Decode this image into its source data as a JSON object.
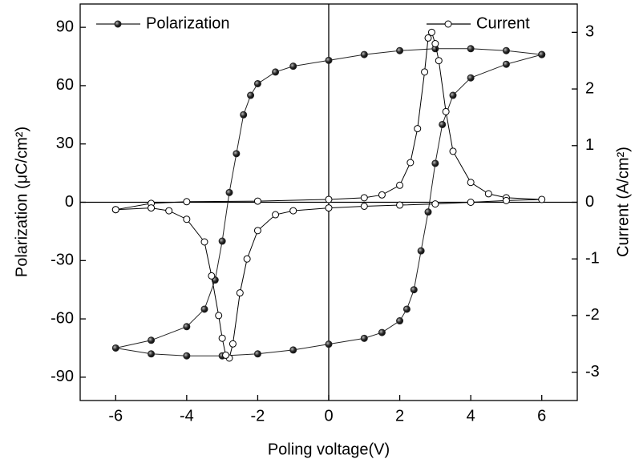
{
  "chart_data": {
    "type": "line",
    "x_label": "Poling voltage(V)",
    "y_label": "Polarization (μC/cm²)",
    "y2_label": "Current (A/cm²)",
    "xlim": [
      -7,
      7
    ],
    "xticks": [
      -6,
      -4,
      -2,
      0,
      2,
      4,
      6
    ],
    "ylim": [
      -102,
      102
    ],
    "yticks": [
      -90,
      -60,
      -30,
      0,
      30,
      60,
      90
    ],
    "y2lim": [
      -3.5,
      3.5
    ],
    "y2ticks": [
      -3,
      -2,
      -1,
      0,
      1,
      2,
      3
    ],
    "series": [
      {
        "name": "Polarization",
        "color": "#222222",
        "marker": "filled",
        "x": [
          6,
          5,
          4,
          3,
          2,
          1,
          0,
          -1,
          -1.5,
          -2,
          -2.2,
          -2.4,
          -2.6,
          -2.8,
          -3,
          -3.2,
          -3.5,
          -4,
          -5,
          -6,
          -5,
          -4,
          -3,
          -2,
          -1,
          0,
          1,
          1.5,
          2,
          2.2,
          2.4,
          2.6,
          2.8,
          3,
          3.2,
          3.5,
          4,
          5,
          6
        ],
        "values": [
          76,
          78,
          79,
          79,
          78,
          76,
          73,
          70,
          67,
          61,
          55,
          45,
          25,
          5,
          -20,
          -40,
          -55,
          -64,
          -71,
          -75,
          -78,
          -79,
          -79,
          -78,
          -76,
          -73,
          -70,
          -67,
          -61,
          -55,
          -45,
          -25,
          -5,
          20,
          40,
          55,
          64,
          71,
          76
        ]
      },
      {
        "name": "Current",
        "color": "#000000",
        "marker": "open",
        "axis": "y2",
        "x": [
          -6,
          -5,
          -4,
          -2,
          0,
          1,
          1.5,
          2,
          2.3,
          2.5,
          2.7,
          2.8,
          2.9,
          3,
          3.1,
          3.3,
          3.5,
          4,
          4.5,
          5,
          6,
          5,
          4,
          3,
          2,
          1,
          0,
          -1,
          -1.5,
          -2,
          -2.3,
          -2.5,
          -2.7,
          -2.8,
          -2.9,
          -3,
          -3.1,
          -3.3,
          -3.5,
          -4,
          -4.5,
          -5,
          -6
        ],
        "values": [
          -0.13,
          -0.02,
          0.01,
          0.02,
          0.05,
          0.08,
          0.13,
          0.3,
          0.7,
          1.3,
          2.3,
          2.9,
          3.0,
          2.8,
          2.5,
          1.6,
          0.9,
          0.35,
          0.15,
          0.08,
          0.05,
          0.03,
          0,
          -0.03,
          -0.05,
          -0.07,
          -0.1,
          -0.15,
          -0.22,
          -0.5,
          -1.0,
          -1.6,
          -2.5,
          -2.75,
          -2.7,
          -2.4,
          -2.0,
          -1.3,
          -0.7,
          -0.3,
          -0.15,
          -0.1,
          -0.13
        ]
      }
    ]
  }
}
